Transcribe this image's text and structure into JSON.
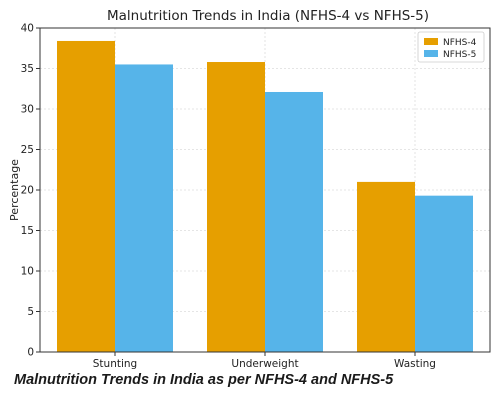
{
  "chart_data": {
    "type": "bar",
    "title": "Malnutrition Trends in India (NFHS-4 vs NFHS-5)",
    "xlabel": "",
    "ylabel": "Percentage",
    "categories": [
      "Stunting",
      "Underweight",
      "Wasting"
    ],
    "series": [
      {
        "name": "NFHS-4",
        "values": [
          38.4,
          35.8,
          21.0
        ],
        "color": "#E69F00"
      },
      {
        "name": "NFHS-5",
        "values": [
          35.5,
          32.1,
          19.3
        ],
        "color": "#56B4E9"
      }
    ],
    "ylim": [
      0,
      40
    ],
    "yticks": [
      0,
      5,
      10,
      15,
      20,
      25,
      30,
      35,
      40
    ],
    "grid": true,
    "legend_position": "top-right"
  },
  "caption": "Malnutrition Trends in India as per NFHS-4 and NFHS-5"
}
